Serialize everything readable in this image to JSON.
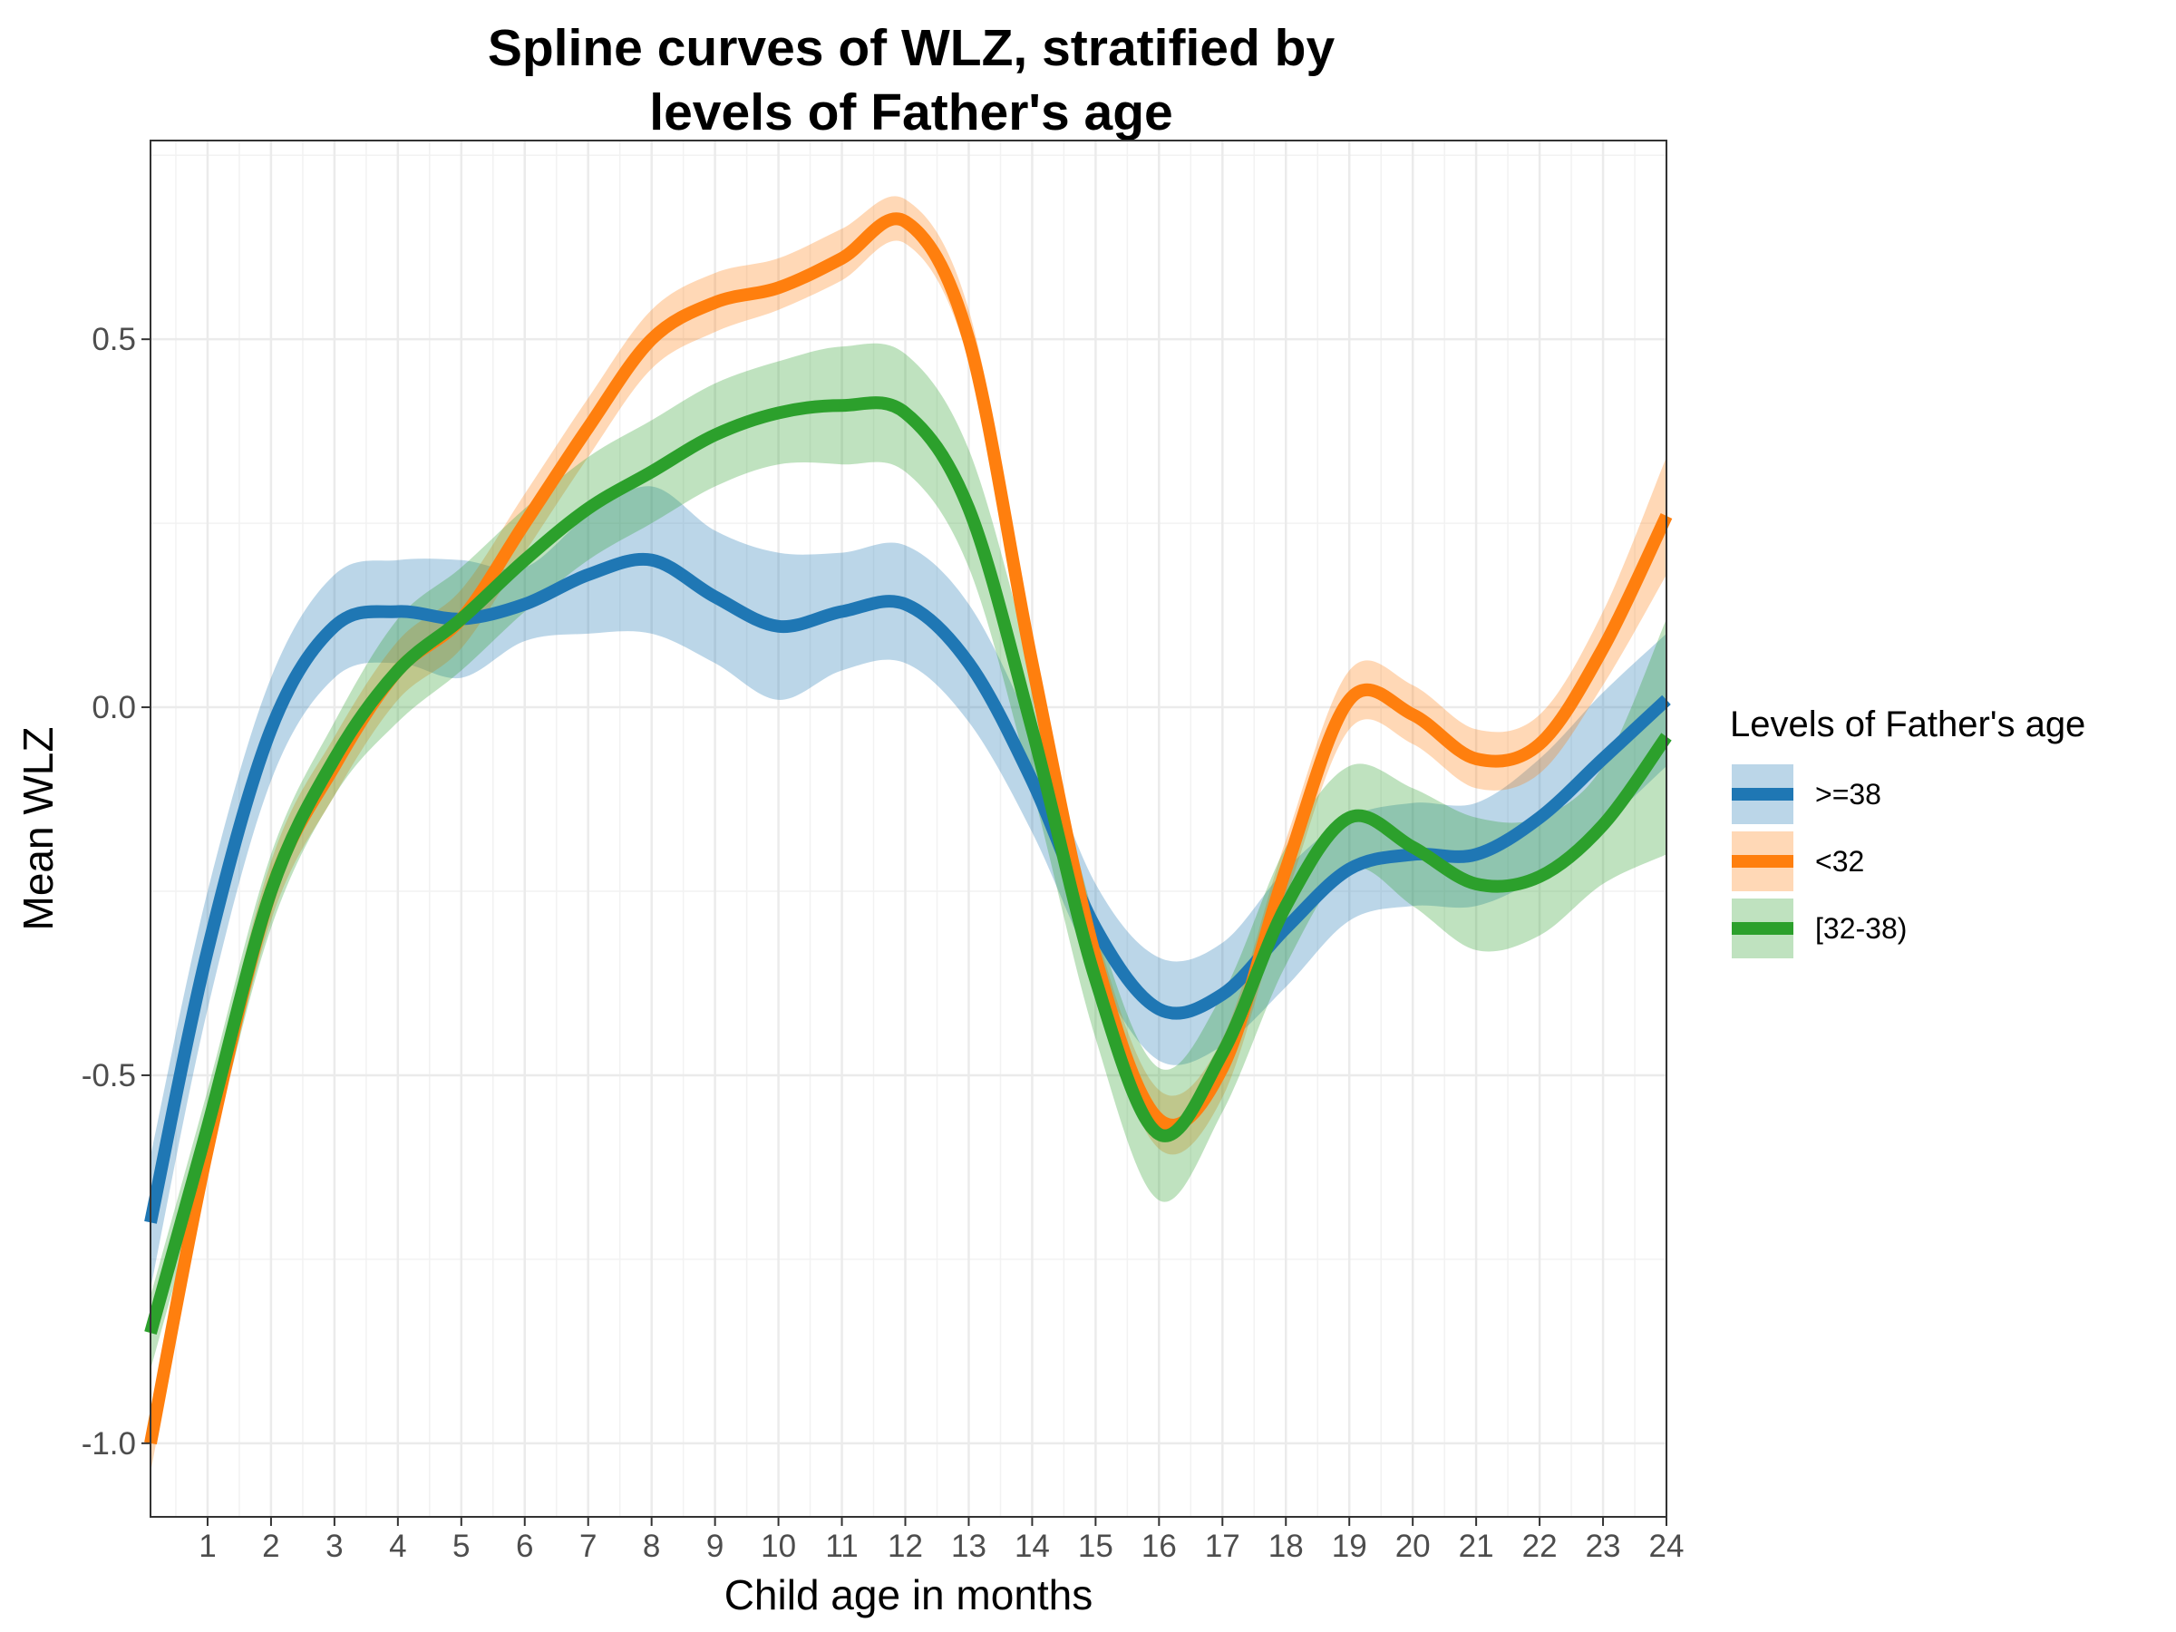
{
  "chart_data": {
    "type": "line",
    "title_line1": "Spline curves of WLZ, stratified by",
    "title_line2": "levels of Father's age",
    "xlabel": "Child age in months",
    "ylabel": "Mean WLZ",
    "xlim": [
      0.1,
      24
    ],
    "ylim": [
      -1.1,
      0.77
    ],
    "xticks": [
      1,
      2,
      3,
      4,
      5,
      6,
      7,
      8,
      9,
      10,
      11,
      12,
      13,
      14,
      15,
      16,
      17,
      18,
      19,
      20,
      21,
      22,
      23,
      24
    ],
    "xtick_labels": [
      "1",
      "2",
      "3",
      "4",
      "5",
      "6",
      "7",
      "8",
      "9",
      "10",
      "11",
      "12",
      "13",
      "14",
      "15",
      "16",
      "17",
      "18",
      "19",
      "20",
      "21",
      "22",
      "23",
      "24"
    ],
    "yticks": [
      -1.0,
      -0.5,
      0.0,
      0.5
    ],
    "ytick_labels": [
      "-1.0",
      "-0.5",
      "0.0",
      "0.5"
    ],
    "grid": true,
    "legend": {
      "title": "Levels of Father's age",
      "position": "right"
    },
    "series": [
      {
        "name": ">=38",
        "color": "#1f77b4",
        "x": [
          0.1,
          1,
          2,
          3,
          4,
          5,
          6,
          7,
          8,
          9,
          10,
          11,
          12,
          13,
          14,
          15,
          16,
          17,
          18,
          19,
          20,
          21,
          22,
          23,
          24
        ],
        "y": [
          -0.7,
          -0.33,
          -0.03,
          0.11,
          0.13,
          0.12,
          0.14,
          0.18,
          0.2,
          0.15,
          0.11,
          0.13,
          0.14,
          0.06,
          -0.1,
          -0.3,
          -0.41,
          -0.39,
          -0.3,
          -0.22,
          -0.2,
          -0.2,
          -0.15,
          -0.07,
          0.01
        ],
        "lower": [
          -0.79,
          -0.41,
          -0.1,
          0.04,
          0.06,
          0.04,
          0.09,
          0.1,
          0.1,
          0.06,
          0.01,
          0.05,
          0.06,
          -0.02,
          -0.17,
          -0.36,
          -0.48,
          -0.46,
          -0.38,
          -0.29,
          -0.27,
          -0.27,
          -0.23,
          -0.16,
          -0.08
        ],
        "upper": [
          -0.61,
          -0.25,
          0.04,
          0.18,
          0.2,
          0.2,
          0.19,
          0.26,
          0.3,
          0.24,
          0.21,
          0.21,
          0.22,
          0.14,
          -0.03,
          -0.24,
          -0.34,
          -0.32,
          -0.22,
          -0.15,
          -0.13,
          -0.13,
          -0.07,
          0.02,
          0.1
        ]
      },
      {
        "name": "<32",
        "color": "#ff7f0e",
        "x": [
          0.1,
          1,
          2,
          3,
          4,
          5,
          6,
          7,
          8,
          9,
          10,
          11,
          12,
          13,
          14,
          15,
          16,
          17,
          18,
          19,
          20,
          21,
          22,
          23,
          24
        ],
        "y": [
          -1.0,
          -0.6,
          -0.25,
          -0.08,
          0.05,
          0.12,
          0.25,
          0.38,
          0.5,
          0.55,
          0.57,
          0.61,
          0.66,
          0.5,
          0.06,
          -0.34,
          -0.56,
          -0.49,
          -0.22,
          0.01,
          -0.01,
          -0.07,
          -0.05,
          0.08,
          0.26
        ],
        "lower": [
          -1.04,
          -0.64,
          -0.29,
          -0.12,
          0.01,
          0.08,
          0.21,
          0.34,
          0.46,
          0.51,
          0.54,
          0.58,
          0.63,
          0.47,
          0.02,
          -0.38,
          -0.6,
          -0.53,
          -0.26,
          -0.03,
          -0.05,
          -0.11,
          -0.09,
          0.03,
          0.18
        ],
        "upper": [
          -0.96,
          -0.56,
          -0.21,
          -0.04,
          0.09,
          0.16,
          0.29,
          0.42,
          0.54,
          0.59,
          0.61,
          0.65,
          0.69,
          0.54,
          0.1,
          -0.3,
          -0.52,
          -0.45,
          -0.18,
          0.05,
          0.03,
          -0.03,
          -0.01,
          0.13,
          0.34
        ]
      },
      {
        "name": "[32-38)",
        "color": "#2ca02c",
        "x": [
          0.1,
          1,
          2,
          3,
          4,
          5,
          6,
          7,
          8,
          9,
          10,
          11,
          12,
          13,
          14,
          15,
          16,
          17,
          18,
          19,
          20,
          21,
          22,
          23,
          24
        ],
        "y": [
          -0.85,
          -0.57,
          -0.25,
          -0.07,
          0.05,
          0.12,
          0.2,
          0.27,
          0.32,
          0.37,
          0.4,
          0.41,
          0.4,
          0.27,
          -0.03,
          -0.37,
          -0.58,
          -0.47,
          -0.27,
          -0.15,
          -0.19,
          -0.24,
          -0.23,
          -0.16,
          -0.04
        ],
        "lower": [
          -0.9,
          -0.62,
          -0.3,
          -0.12,
          -0.02,
          0.05,
          0.13,
          0.2,
          0.25,
          0.3,
          0.33,
          0.33,
          0.32,
          0.19,
          -0.11,
          -0.45,
          -0.67,
          -0.55,
          -0.35,
          -0.22,
          -0.27,
          -0.33,
          -0.31,
          -0.24,
          -0.2
        ],
        "upper": [
          -0.8,
          -0.52,
          -0.2,
          -0.02,
          0.12,
          0.19,
          0.27,
          0.34,
          0.39,
          0.44,
          0.47,
          0.49,
          0.48,
          0.35,
          0.05,
          -0.29,
          -0.49,
          -0.39,
          -0.19,
          -0.08,
          -0.11,
          -0.15,
          -0.15,
          -0.08,
          0.12
        ]
      }
    ]
  }
}
